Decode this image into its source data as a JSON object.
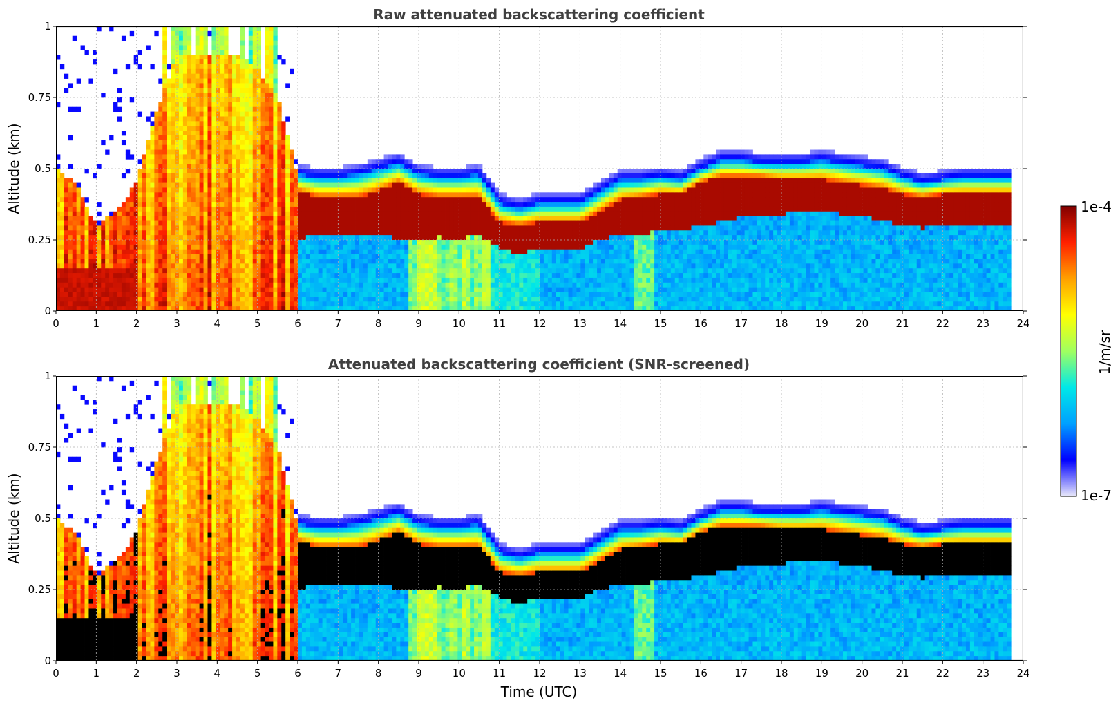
{
  "chart_data": [
    {
      "type": "heatmap",
      "title": "Raw attenuated backscattering coefficient",
      "xlabel": "",
      "ylabel": "Altitude (km)",
      "xlim": [
        0,
        24
      ],
      "ylim": [
        0,
        1
      ],
      "x_ticks": [
        "0",
        "1",
        "2",
        "3",
        "4",
        "5",
        "6",
        "7",
        "8",
        "9",
        "10",
        "11",
        "12",
        "13",
        "14",
        "15",
        "16",
        "17",
        "18",
        "19",
        "20",
        "21",
        "22",
        "23",
        "24"
      ],
      "y_ticks": [
        "0",
        "0.25",
        "0.5",
        "0.75",
        "1"
      ],
      "grid": true,
      "data_end_time": 23.65,
      "cloud_layer": {
        "time": [
          0,
          0.5,
          1,
          1.5,
          2,
          2.5,
          3,
          3.5,
          4,
          4.5,
          5,
          5.5,
          6,
          6.5,
          7,
          7.5,
          8,
          8.5,
          9,
          9.5,
          10,
          10.5,
          11,
          11.5,
          12,
          12.5,
          13,
          13.5,
          14,
          14.5,
          15,
          15.5,
          16,
          16.5,
          17,
          17.5,
          18,
          18.5,
          19,
          19.5,
          20,
          20.5,
          21,
          21.5,
          22,
          22.5,
          23,
          23.65
        ],
        "top_km": [
          0.5,
          0.45,
          0.3,
          0.35,
          0.45,
          0.7,
          0.9,
          0.9,
          0.9,
          0.9,
          0.85,
          0.75,
          0.48,
          0.47,
          0.47,
          0.48,
          0.5,
          0.52,
          0.48,
          0.47,
          0.47,
          0.48,
          0.38,
          0.36,
          0.38,
          0.38,
          0.38,
          0.42,
          0.46,
          0.46,
          0.47,
          0.46,
          0.5,
          0.53,
          0.53,
          0.52,
          0.52,
          0.52,
          0.53,
          0.52,
          0.51,
          0.5,
          0.47,
          0.45,
          0.46,
          0.47,
          0.47,
          0.47
        ],
        "dense_top_km": [
          0.42,
          0.4,
          0.25,
          0.28,
          0.35,
          0.6,
          0.8,
          0.8,
          0.8,
          0.8,
          0.75,
          0.65,
          0.42,
          0.4,
          0.4,
          0.4,
          0.42,
          0.45,
          0.41,
          0.4,
          0.4,
          0.4,
          0.31,
          0.3,
          0.31,
          0.31,
          0.31,
          0.35,
          0.39,
          0.4,
          0.41,
          0.41,
          0.45,
          0.47,
          0.47,
          0.47,
          0.46,
          0.46,
          0.46,
          0.45,
          0.44,
          0.43,
          0.41,
          0.4,
          0.41,
          0.41,
          0.41,
          0.41
        ],
        "dense_base_km": [
          0.0,
          0.0,
          0.0,
          0.0,
          0.0,
          0.0,
          0.0,
          0.0,
          0.0,
          0.0,
          0.0,
          0.0,
          0.25,
          0.27,
          0.27,
          0.27,
          0.27,
          0.25,
          0.25,
          0.26,
          0.25,
          0.27,
          0.22,
          0.2,
          0.22,
          0.22,
          0.22,
          0.25,
          0.27,
          0.27,
          0.28,
          0.28,
          0.3,
          0.31,
          0.33,
          0.33,
          0.34,
          0.35,
          0.35,
          0.34,
          0.33,
          0.32,
          0.3,
          0.29,
          0.3,
          0.3,
          0.3,
          0.3
        ]
      }
    },
    {
      "type": "heatmap",
      "title": "Attenuated backscattering coefficient (SNR-screened)",
      "xlabel": "Time (UTC)",
      "ylabel": "Altitude (km)",
      "xlim": [
        0,
        24
      ],
      "ylim": [
        0,
        1
      ],
      "x_ticks": [
        "0",
        "1",
        "2",
        "3",
        "4",
        "5",
        "6",
        "7",
        "8",
        "9",
        "10",
        "11",
        "12",
        "13",
        "14",
        "15",
        "16",
        "17",
        "18",
        "19",
        "20",
        "21",
        "22",
        "23",
        "24"
      ],
      "y_ticks": [
        "0",
        "0.25",
        "0.5",
        "0.75",
        "1"
      ],
      "grid": true,
      "screened_color": "#000000"
    }
  ],
  "colorbar": {
    "label": "1/m/sr",
    "min_label": "1e-7",
    "max_label": "1e-4",
    "colors": [
      "#e8e8fa",
      "#0000ff",
      "#00a0ff",
      "#00e8e8",
      "#a0ff60",
      "#ffff00",
      "#ffa000",
      "#ff2000",
      "#800000"
    ]
  }
}
